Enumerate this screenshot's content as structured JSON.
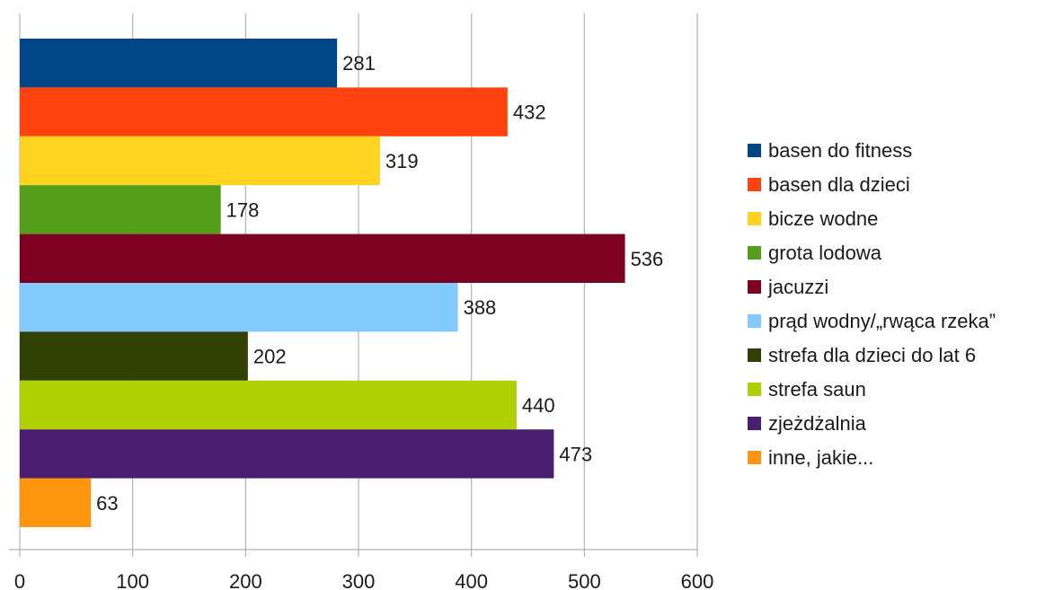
{
  "chart_data": {
    "type": "bar",
    "orientation": "horizontal",
    "title": "",
    "xlabel": "",
    "ylabel": "",
    "xlim": [
      0,
      600
    ],
    "x_ticks": [
      "0",
      "100",
      "200",
      "300",
      "400",
      "500",
      "600"
    ],
    "grid": "vertical",
    "legend_position": "right",
    "series": [
      {
        "name": "basen do fitness",
        "value": 281,
        "color": "#004586"
      },
      {
        "name": "basen dla dzieci",
        "value": 432,
        "color": "#ff420e"
      },
      {
        "name": "bicze wodne",
        "value": 319,
        "color": "#ffd320"
      },
      {
        "name": "grota lodowa",
        "value": 178,
        "color": "#579d1c"
      },
      {
        "name": "jacuzzi",
        "value": 536,
        "color": "#7e0021"
      },
      {
        "name": "prąd wodny/„rwąca rzeka”",
        "value": 388,
        "color": "#83caff"
      },
      {
        "name": "strefa dla dzieci do lat 6",
        "value": 202,
        "color": "#314004"
      },
      {
        "name": "strefa saun",
        "value": 440,
        "color": "#aecf00"
      },
      {
        "name": "zjeżdżalnia",
        "value": 473,
        "color": "#4b1f6f"
      },
      {
        "name": "inne, jakie...",
        "value": 63,
        "color": "#ff950e"
      }
    ]
  }
}
